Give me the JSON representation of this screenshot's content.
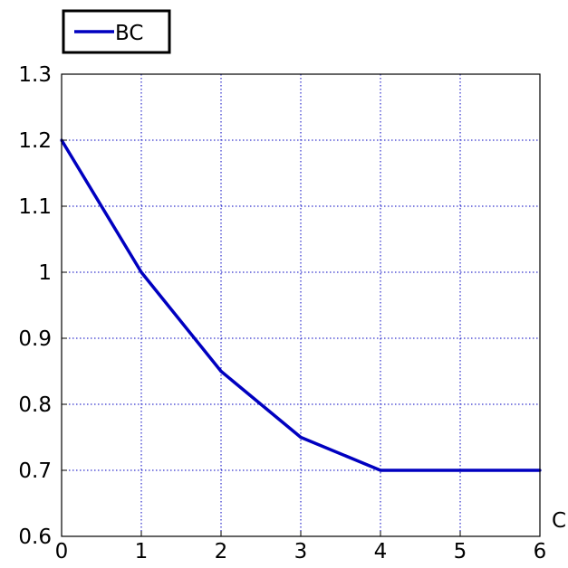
{
  "chart_data": {
    "type": "line",
    "title": "",
    "xlabel": "C",
    "ylabel": "",
    "xlim": [
      0,
      6
    ],
    "ylim": [
      0.6,
      1.3
    ],
    "xticks": [
      0,
      1,
      2,
      3,
      4,
      5,
      6
    ],
    "xtick_labels": [
      "0",
      "1",
      "2",
      "3",
      "4",
      "5",
      "6"
    ],
    "yticks": [
      0.6,
      0.7,
      0.8,
      0.9,
      1.0,
      1.1,
      1.2,
      1.3
    ],
    "ytick_labels": [
      "0.6",
      "0.7",
      "0.8",
      "0.9",
      "1",
      "1.1",
      "1.2",
      "1.3"
    ],
    "grid": true,
    "grid_style": "dotted",
    "legend_position": "top-left, above plot",
    "series": [
      {
        "name": "BC",
        "color": "#0000c0",
        "x": [
          0,
          1,
          2,
          3,
          4,
          5,
          6
        ],
        "y": [
          1.2,
          1.0,
          0.85,
          0.75,
          0.7,
          0.7,
          0.7
        ]
      }
    ]
  },
  "colors": {
    "series": "#0000c0",
    "grid": "#0000c0",
    "axes": "#000000",
    "background": "#ffffff"
  }
}
